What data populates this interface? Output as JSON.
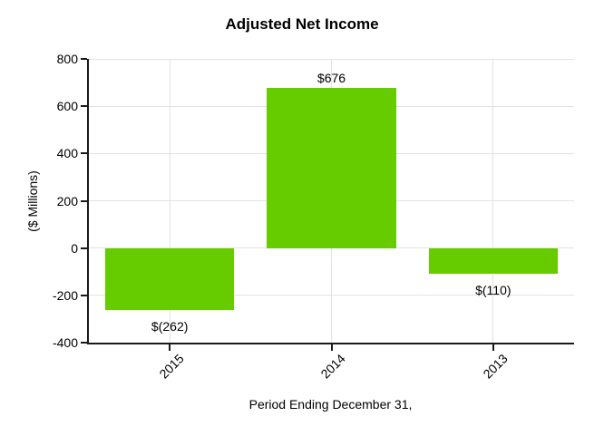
{
  "chart_data": {
    "type": "bar",
    "title": "Adjusted Net Income",
    "categories": [
      "2015",
      "2014",
      "2013"
    ],
    "values": [
      -262,
      676,
      -110
    ],
    "value_labels": [
      "$(262)",
      "$676",
      "$(110)"
    ],
    "xlabel": "Period Ending December 31,",
    "ylabel": "($ Millions)",
    "ylim": [
      -400,
      800
    ],
    "yticks": [
      800,
      600,
      400,
      200,
      0,
      -200,
      -400
    ],
    "grid": true,
    "legend_position": "none",
    "bar_color": "#66CC00",
    "gridline_color": "#E2E2E2",
    "axis_color": "#1A1A1A",
    "text_color": "#000000"
  }
}
